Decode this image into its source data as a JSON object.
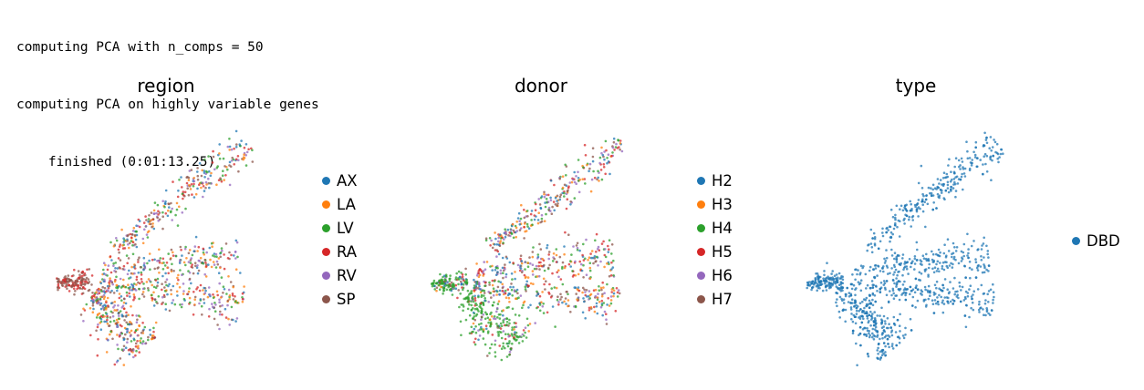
{
  "log_lines": [
    "computing PCA with n_comps = 50",
    "computing PCA on highly variable genes",
    "    finished (0:01:13.25)"
  ],
  "colors": {
    "blue": "#1f77b4",
    "orange": "#ff7f0e",
    "green": "#2ca02c",
    "red": "#d62728",
    "purple": "#9467bd",
    "brown": "#8c564b"
  },
  "chart_data": [
    {
      "type": "scatter",
      "title": "region",
      "legend": [
        "AX",
        "LA",
        "LV",
        "RA",
        "RV",
        "SP"
      ],
      "legend_colors": [
        "#1f77b4",
        "#ff7f0e",
        "#2ca02c",
        "#d62728",
        "#9467bd",
        "#8c564b"
      ],
      "legend_position": "right",
      "axes": "none",
      "grid": false
    },
    {
      "type": "scatter",
      "title": "donor",
      "legend": [
        "H2",
        "H3",
        "H4",
        "H5",
        "H6",
        "H7"
      ],
      "legend_colors": [
        "#1f77b4",
        "#ff7f0e",
        "#2ca02c",
        "#d62728",
        "#9467bd",
        "#8c564b"
      ],
      "legend_position": "right",
      "axes": "none",
      "grid": false
    },
    {
      "type": "scatter",
      "title": "type",
      "legend": [
        "DBD"
      ],
      "legend_colors": [
        "#1f77b4"
      ],
      "legend_position": "right",
      "axes": "none",
      "grid": false
    }
  ]
}
